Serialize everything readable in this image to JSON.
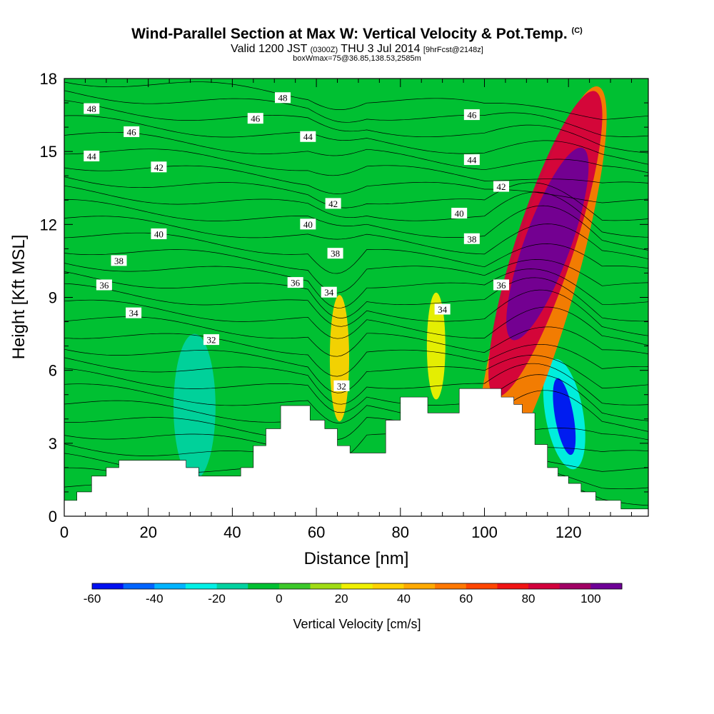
{
  "titles": {
    "main": "Wind-Parallel Section at Max W: Vertical Velocity & Pot.Temp.",
    "main_suffix": "(C)",
    "valid_prefix": "Valid 1200 JST",
    "valid_utc": "(0300Z)",
    "valid_date": "THU 3 Jul 2014",
    "valid_fcst": "[9hrFcst@2148z]",
    "boxwmax": "boxWmax=75@36.85,138.53,2585m"
  },
  "chart_data": {
    "type": "heatmap",
    "xlabel": "Distance [nm]",
    "ylabel": "Height [Kft MSL]",
    "xlim": [
      0,
      139
    ],
    "ylim": [
      0,
      18
    ],
    "x_ticks": [
      "0",
      "20",
      "40",
      "60",
      "80",
      "100",
      "120"
    ],
    "y_ticks": [
      "0",
      "3",
      "6",
      "9",
      "12",
      "15",
      "18"
    ],
    "colorbar": {
      "label": "Vertical Velocity [cm/s]",
      "tick_labels": [
        "-60",
        "-40",
        "-20",
        "0",
        "20",
        "40",
        "60",
        "80",
        "100"
      ],
      "levels": [
        -60,
        -50,
        -40,
        -30,
        -20,
        -10,
        0,
        10,
        20,
        30,
        40,
        50,
        60,
        70,
        80,
        90,
        100,
        110
      ],
      "colors": [
        "#0010f0",
        "#0064ff",
        "#00b4ff",
        "#00f0e6",
        "#00d2a0",
        "#00c032",
        "#3cc82a",
        "#a0dc14",
        "#f0f000",
        "#ffd200",
        "#ffaa00",
        "#ff7800",
        "#ff4600",
        "#f01414",
        "#d2003c",
        "#a00064",
        "#6e0096"
      ]
    },
    "contour_labels": [
      {
        "text": "48",
        "x": 6.5,
        "y": 16.75
      },
      {
        "text": "46",
        "x": 16,
        "y": 15.8
      },
      {
        "text": "44",
        "x": 6.5,
        "y": 14.8
      },
      {
        "text": "42",
        "x": 22.5,
        "y": 14.35
      },
      {
        "text": "40",
        "x": 22.5,
        "y": 11.6
      },
      {
        "text": "38",
        "x": 13,
        "y": 10.5
      },
      {
        "text": "36",
        "x": 9.5,
        "y": 9.5
      },
      {
        "text": "34",
        "x": 16.5,
        "y": 8.35
      },
      {
        "text": "32",
        "x": 35,
        "y": 7.25
      },
      {
        "text": "48",
        "x": 52,
        "y": 17.2
      },
      {
        "text": "46",
        "x": 45.5,
        "y": 16.35
      },
      {
        "text": "44",
        "x": 58,
        "y": 15.6
      },
      {
        "text": "42",
        "x": 64,
        "y": 12.85
      },
      {
        "text": "40",
        "x": 58,
        "y": 12
      },
      {
        "text": "38",
        "x": 64.5,
        "y": 10.8
      },
      {
        "text": "36",
        "x": 55,
        "y": 9.6
      },
      {
        "text": "34",
        "x": 63,
        "y": 9.2
      },
      {
        "text": "32",
        "x": 66,
        "y": 5.35
      },
      {
        "text": "46",
        "x": 97,
        "y": 16.5
      },
      {
        "text": "44",
        "x": 97,
        "y": 14.65
      },
      {
        "text": "42",
        "x": 104,
        "y": 13.55
      },
      {
        "text": "40",
        "x": 94,
        "y": 12.45
      },
      {
        "text": "38",
        "x": 97,
        "y": 11.4
      },
      {
        "text": "36",
        "x": 104,
        "y": 9.5
      },
      {
        "text": "34",
        "x": 90,
        "y": 8.5
      }
    ],
    "terrain": [
      [
        0,
        0.65
      ],
      [
        3,
        1.0
      ],
      [
        6.5,
        1.65
      ],
      [
        10,
        2.0
      ],
      [
        13,
        2.3
      ],
      [
        29,
        2.0
      ],
      [
        32,
        1.65
      ],
      [
        42,
        2.0
      ],
      [
        45,
        2.9
      ],
      [
        48,
        3.6
      ],
      [
        51.5,
        4.55
      ],
      [
        58.5,
        3.95
      ],
      [
        62,
        3.6
      ],
      [
        65,
        2.9
      ],
      [
        68,
        2.6
      ],
      [
        76.5,
        3.95
      ],
      [
        80,
        4.9
      ],
      [
        86.5,
        4.25
      ],
      [
        94,
        5.25
      ],
      [
        104,
        4.9
      ],
      [
        107,
        4.6
      ],
      [
        109,
        4.25
      ],
      [
        112,
        2.95
      ],
      [
        115,
        2.0
      ],
      [
        117.5,
        1.65
      ],
      [
        120,
        1.35
      ],
      [
        123,
        1.0
      ],
      [
        126.5,
        0.65
      ],
      [
        132.5,
        0.3
      ],
      [
        139,
        0.3
      ]
    ],
    "w_features": [
      {
        "x": 115,
        "y": 11.2,
        "rx": 5.5,
        "ry": 4.2,
        "rot": 20,
        "value": 105
      },
      {
        "x": 114.5,
        "y": 11.2,
        "rx": 7,
        "ry": 6.6,
        "rot": 18,
        "value": 80
      },
      {
        "x": 113.5,
        "y": 9.5,
        "rx": 8,
        "ry": 8.5,
        "rot": 16,
        "value": 50
      },
      {
        "x": 119,
        "y": 4.1,
        "rx": 2.2,
        "ry": 1.6,
        "rot": -10,
        "value": -55
      },
      {
        "x": 119,
        "y": 4.2,
        "rx": 4.5,
        "ry": 2.3,
        "rot": -10,
        "value": -30
      },
      {
        "x": 65.5,
        "y": 6.5,
        "rx": 2.3,
        "ry": 2.6,
        "rot": 0,
        "value": 30
      },
      {
        "x": 88.5,
        "y": 7.0,
        "rx": 2.2,
        "ry": 2.2,
        "rot": 0,
        "value": 25
      },
      {
        "x": 31,
        "y": 4.5,
        "rx": 5,
        "ry": 3,
        "rot": 0,
        "value": -15
      },
      {
        "x": 27.5,
        "y": 14.6,
        "rx": 5.5,
        "ry": 1.0,
        "rot": -8,
        "value": -10
      }
    ]
  }
}
